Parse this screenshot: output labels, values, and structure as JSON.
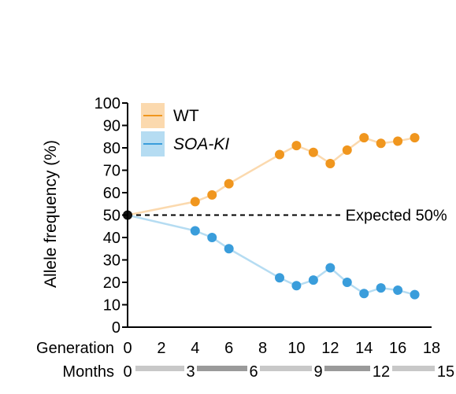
{
  "chart_data": {
    "type": "line",
    "ylabel": "Allele frequency (%)",
    "ylim": [
      0,
      100
    ],
    "yticks": [
      0,
      10,
      20,
      30,
      40,
      50,
      60,
      70,
      80,
      90,
      100
    ],
    "xlim": [
      0,
      18
    ],
    "x_axis_label": "Generation",
    "xticks": [
      0,
      2,
      4,
      6,
      8,
      10,
      12,
      14,
      16,
      18
    ],
    "months_label": "Months",
    "months": [
      "0",
      "3",
      "6",
      "9",
      "12",
      "15"
    ],
    "reference": {
      "y": 50,
      "label": "Expected 50%"
    },
    "start_point": {
      "x": 0,
      "y": 50
    },
    "legend_position": "top-left",
    "series": [
      {
        "name": "WT",
        "italic": false,
        "color": "#f0961e",
        "line_color": "#fbd9ae",
        "x": [
          4,
          5,
          6,
          9,
          10,
          11,
          12,
          13,
          14,
          15,
          16,
          17
        ],
        "y": [
          56,
          59,
          64,
          77,
          81,
          78,
          73,
          79,
          84.5,
          82,
          83,
          84.5
        ]
      },
      {
        "name": "SOA-KI",
        "italic": true,
        "color": "#3a9ddb",
        "line_color": "#b5dcf2",
        "x": [
          4,
          5,
          6,
          9,
          10,
          11,
          12,
          13,
          14,
          15,
          16,
          17
        ],
        "y": [
          43,
          40,
          35,
          22,
          18.5,
          21,
          26.5,
          20,
          15,
          17.5,
          16.5,
          14.5
        ]
      }
    ]
  }
}
